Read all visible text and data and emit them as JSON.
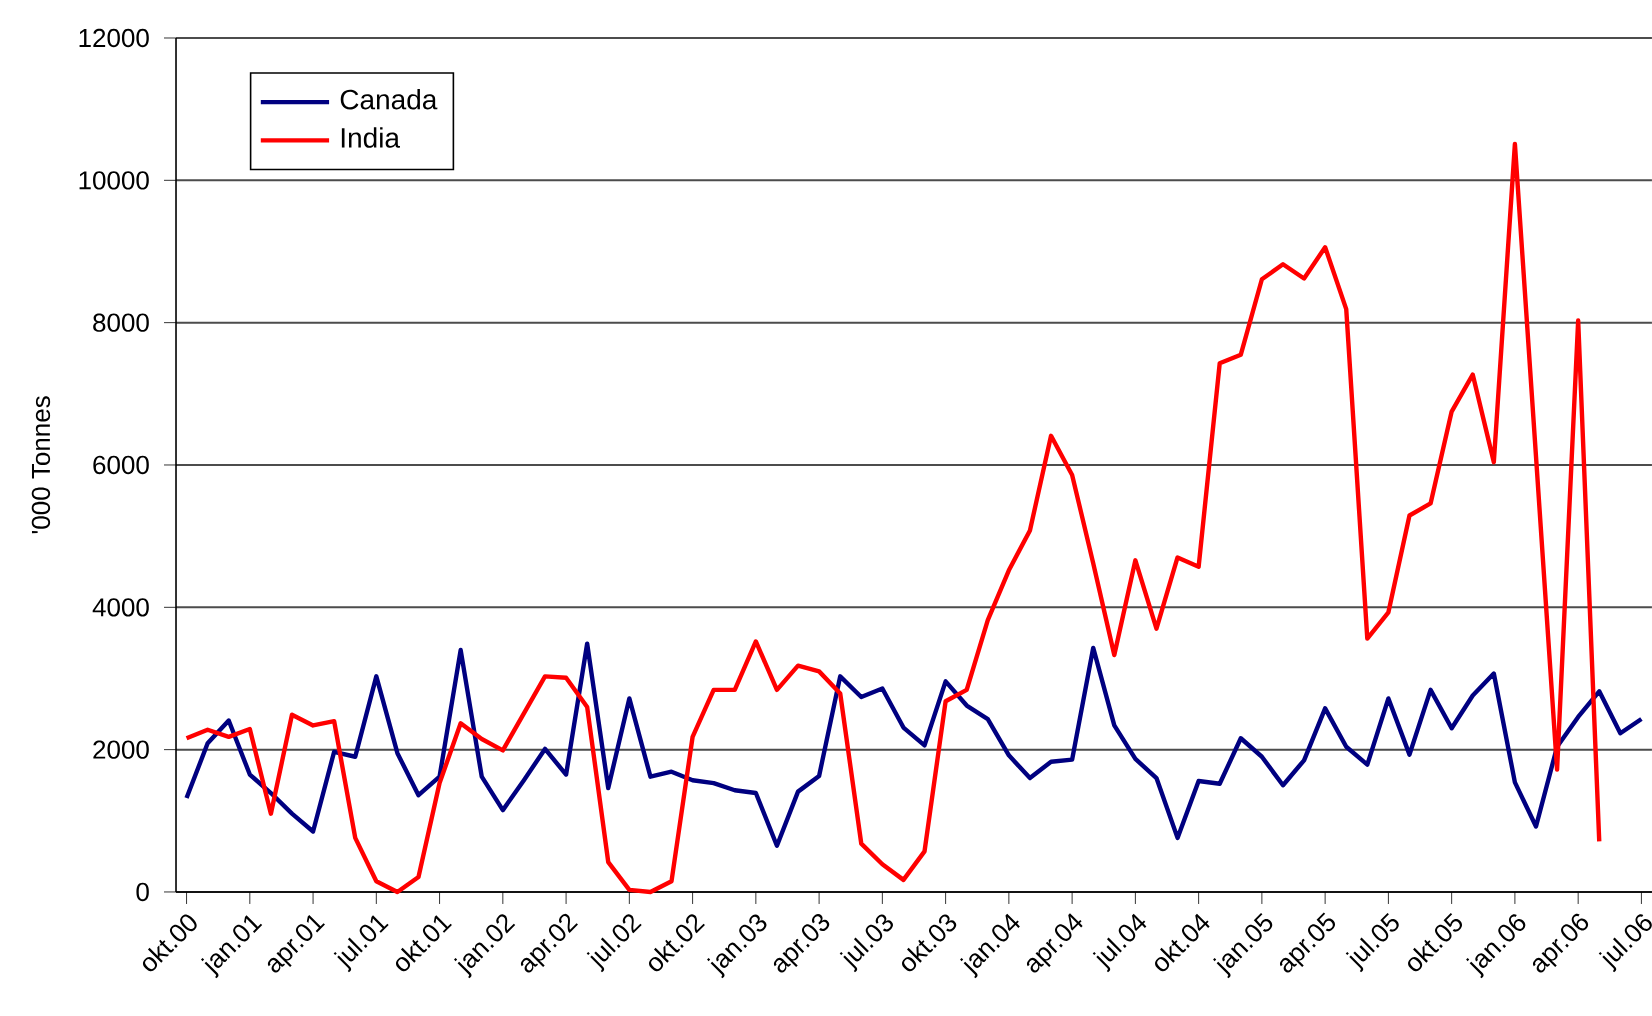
{
  "chart_data": {
    "type": "line",
    "ylabel": "'000 Tonnes",
    "categories": [
      "okt.00",
      null,
      null,
      "jan.01",
      null,
      null,
      "apr.01",
      null,
      null,
      "jul.01",
      null,
      null,
      "okt.01",
      null,
      null,
      "jan.02",
      null,
      null,
      "apr.02",
      null,
      null,
      "jul.02",
      null,
      null,
      "okt.02",
      null,
      null,
      "jan.03",
      null,
      null,
      "apr.03",
      null,
      null,
      "jul.03",
      null,
      null,
      "okt.03",
      null,
      null,
      "jan.04",
      null,
      null,
      "apr.04",
      null,
      null,
      "jul.04",
      null,
      null,
      "okt.04",
      null,
      null,
      "jan.05",
      null,
      null,
      "apr.05",
      null,
      null,
      "jul.05",
      null,
      null,
      "okt.05",
      null,
      null,
      "jan.06",
      null,
      null,
      "apr.06",
      null,
      null,
      "jul.06"
    ],
    "series": [
      {
        "name": "Canada",
        "color": "#000080",
        "values": [
          1320,
          2090,
          2410,
          1650,
          1390,
          1100,
          850,
          1970,
          1900,
          3030,
          1950,
          1360,
          1620,
          3400,
          1620,
          1150,
          1570,
          2010,
          1650,
          3490,
          1460,
          2720,
          1620,
          1690,
          1570,
          1530,
          1430,
          1390,
          650,
          1410,
          1630,
          3030,
          2740,
          2860,
          2310,
          2060,
          2960,
          2620,
          2430,
          1920,
          1600,
          1830,
          1860,
          3430,
          2340,
          1870,
          1600,
          760,
          1560,
          1520,
          2160,
          1900,
          1500,
          1850,
          2580,
          2040,
          1790,
          2720,
          1930,
          2840,
          2300,
          2760,
          3070,
          1540,
          920,
          2040,
          2460,
          2820,
          2230,
          2430
        ]
      },
      {
        "name": "India",
        "color": "#ff0000",
        "values": [
          2160,
          2280,
          2180,
          2290,
          1100,
          2490,
          2340,
          2400,
          760,
          150,
          0,
          210,
          1530,
          2370,
          2150,
          1990,
          2510,
          3030,
          3010,
          2600,
          420,
          30,
          0,
          150,
          2180,
          2840,
          2840,
          3520,
          2840,
          3180,
          3100,
          2790,
          680,
          390,
          170,
          570,
          2680,
          2840,
          3820,
          4520,
          5080,
          6410,
          5860,
          4620,
          3330,
          4660,
          3700,
          4700,
          4570,
          7430,
          7550,
          8610,
          8820,
          8620,
          9060,
          8190,
          3560,
          3930,
          5290,
          5460,
          6750,
          7270,
          6040,
          10510,
          6120,
          1720,
          8030,
          710,
          null,
          null
        ]
      }
    ],
    "ylim": [
      0,
      12000
    ],
    "yticks": [
      0,
      2000,
      4000,
      6000,
      8000,
      10000,
      12000
    ],
    "grid": "y",
    "legend": "top left"
  }
}
